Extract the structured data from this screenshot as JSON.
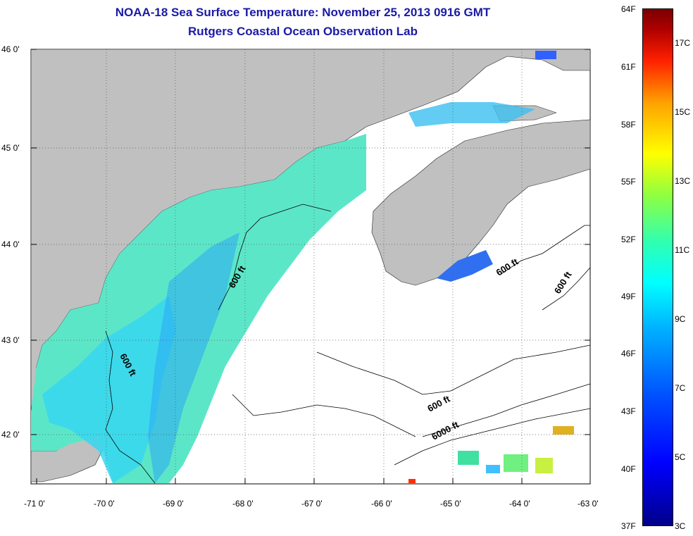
{
  "header": {
    "title_line1": "NOAA-18 Sea Surface Temperature:  November 25, 2013 0916 GMT",
    "title_line2": "Rutgers Coastal Ocean Observation Lab"
  },
  "axes": {
    "lat_labels": [
      "46 0'",
      "45 0'",
      "44 0'",
      "43 0'",
      "42 0'"
    ],
    "lon_labels": [
      "-71 0'",
      "-70 0'",
      "-69 0'",
      "-68 0'",
      "-67 0'",
      "-66 0'",
      "-65 0'",
      "-64 0'",
      "-63 0'"
    ],
    "lat_range": [
      41.5,
      46.0
    ],
    "lon_range": [
      -71.0,
      -63.0
    ]
  },
  "contours": {
    "label_600": "600 ft",
    "label_6000": "6000 ft"
  },
  "colorbar": {
    "fahrenheit_labels": [
      "64F",
      "61F",
      "58F",
      "55F",
      "52F",
      "49F",
      "46F",
      "43F",
      "40F",
      "37F"
    ],
    "celsius_labels": [
      "17C",
      "15C",
      "13C",
      "11C",
      "9C",
      "7C",
      "5C",
      "3C"
    ]
  },
  "colors": {
    "land": "#c0c0c0",
    "title": "#1a1aa6",
    "no_data": "#ffffff"
  }
}
